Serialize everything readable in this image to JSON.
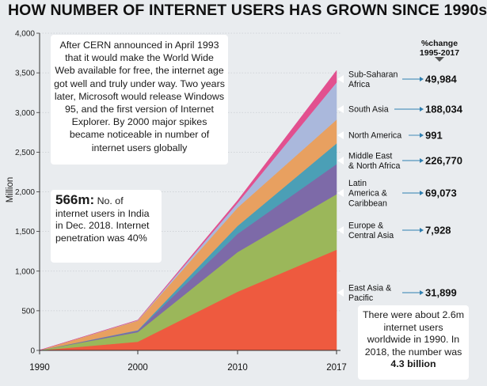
{
  "title": "HOW NUMBER OF INTERNET USERS HAS GROWN SINCE 1990s",
  "chart_data": {
    "type": "area",
    "stacked": true,
    "ylabel": "Million",
    "ylim": [
      0,
      4000
    ],
    "yticks": [
      "0",
      "500",
      "1,000",
      "1,500",
      "2,000",
      "2,500",
      "3,000",
      "3,500",
      "4,000"
    ],
    "x": [
      "1990",
      "2000",
      "2010",
      "2017"
    ],
    "series": [
      {
        "name": "East Asia & Pacific",
        "label_lines": [
          "East Asia &",
          "Pacific"
        ],
        "change": "31,899",
        "color": "#ee5a3f",
        "values": [
          1,
          110,
          740,
          1270
        ]
      },
      {
        "name": "Europe & Central Asia",
        "label_lines": [
          "Europe &",
          "Central Asia"
        ],
        "change": "7,928",
        "color": "#9bb75a",
        "values": [
          1,
          120,
          500,
          700
        ]
      },
      {
        "name": "Latin America & Caribbean",
        "label_lines": [
          "Latin",
          "America &",
          "Caribbean"
        ],
        "change": "69,073",
        "color": "#7d6aa8",
        "values": [
          0,
          20,
          230,
          380
        ]
      },
      {
        "name": "Middle East & North Africa",
        "label_lines": [
          "Middle East",
          "& North Africa"
        ],
        "change": "226,770",
        "color": "#4b9fb6",
        "values": [
          0,
          5,
          100,
          260
        ]
      },
      {
        "name": "North America",
        "label_lines": [
          "North America"
        ],
        "change": "991",
        "color": "#e8a060",
        "values": [
          1,
          120,
          230,
          300
        ]
      },
      {
        "name": "South Asia",
        "label_lines": [
          "South Asia"
        ],
        "change": "188,034",
        "color": "#aab8dc",
        "values": [
          0,
          5,
          60,
          470
        ]
      },
      {
        "name": "Sub-Saharan Africa",
        "label_lines": [
          "Sub-Saharan",
          "Africa"
        ],
        "change": "49,984",
        "color": "#e2508f",
        "values": [
          0,
          3,
          30,
          150
        ]
      }
    ],
    "change_header": [
      "%change",
      "1995-2017"
    ]
  },
  "notes": {
    "cern": "After CERN announced in April 1993 that it would make the World Wide Web available for free, the internet age got well and truly under way. Two years later, Microsoft would release Windows 95, and the first version of Internet Explorer. By 2000 major spikes became noticeable in number of internet users globally",
    "india_big": "566m:",
    "india_rest": " No. of internet users in India in Dec. 2018. Internet penetration was 40%",
    "world_text": "There were about 2.6m internet users worldwide in 1990. In 2018, the number was ",
    "world_bold": "4.3 billion"
  }
}
